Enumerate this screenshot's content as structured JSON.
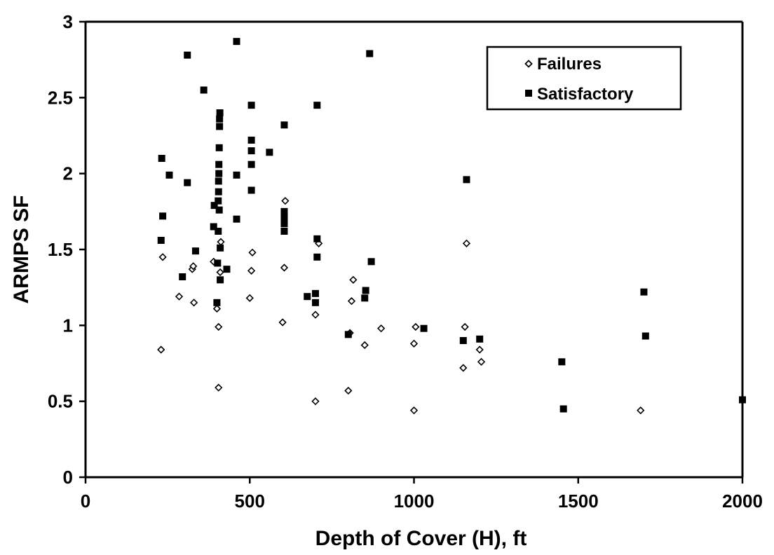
{
  "chart_data": {
    "type": "scatter",
    "title": "",
    "xlabel": "Depth of Cover (H), ft",
    "ylabel": "ARMPS SF",
    "xlim": [
      0,
      2000
    ],
    "ylim": [
      0,
      3
    ],
    "x_ticks": [
      "0",
      "500",
      "1000",
      "1500",
      "2000"
    ],
    "y_ticks": [
      "0",
      "0.5",
      "1",
      "1.5",
      "2",
      "2.5",
      "3"
    ],
    "grid": false,
    "legend_position": "top-right",
    "series": [
      {
        "name": "Failures",
        "marker": "open-diamond",
        "color": "#000000",
        "points": [
          [
            230,
            0.84
          ],
          [
            235,
            1.45
          ],
          [
            285,
            1.19
          ],
          [
            325,
            1.37
          ],
          [
            328,
            1.39
          ],
          [
            330,
            1.15
          ],
          [
            390,
            1.42
          ],
          [
            400,
            1.11
          ],
          [
            405,
            0.99
          ],
          [
            405,
            0.59
          ],
          [
            410,
            1.35
          ],
          [
            412,
            1.55
          ],
          [
            500,
            1.18
          ],
          [
            505,
            1.36
          ],
          [
            508,
            1.48
          ],
          [
            600,
            1.02
          ],
          [
            605,
            1.38
          ],
          [
            608,
            1.82
          ],
          [
            700,
            1.07
          ],
          [
            700,
            0.5
          ],
          [
            710,
            1.54
          ],
          [
            800,
            0.57
          ],
          [
            805,
            0.95
          ],
          [
            810,
            1.16
          ],
          [
            815,
            1.3
          ],
          [
            850,
            0.87
          ],
          [
            900,
            0.98
          ],
          [
            1000,
            0.44
          ],
          [
            1000,
            0.88
          ],
          [
            1005,
            0.99
          ],
          [
            1150,
            0.72
          ],
          [
            1155,
            0.99
          ],
          [
            1160,
            1.54
          ],
          [
            1200,
            0.84
          ],
          [
            1205,
            0.76
          ],
          [
            1690,
            0.44
          ]
        ]
      },
      {
        "name": "Satisfactory",
        "marker": "filled-square",
        "color": "#000000",
        "points": [
          [
            230,
            1.56
          ],
          [
            232,
            2.1
          ],
          [
            235,
            1.72
          ],
          [
            255,
            1.99
          ],
          [
            295,
            1.32
          ],
          [
            310,
            1.94
          ],
          [
            310,
            2.78
          ],
          [
            335,
            1.49
          ],
          [
            360,
            2.55
          ],
          [
            390,
            1.65
          ],
          [
            392,
            1.79
          ],
          [
            400,
            1.15
          ],
          [
            402,
            1.41
          ],
          [
            404,
            1.62
          ],
          [
            404,
            1.82
          ],
          [
            405,
            1.88
          ],
          [
            405,
            1.95
          ],
          [
            406,
            2.0
          ],
          [
            406,
            2.06
          ],
          [
            407,
            1.76
          ],
          [
            407,
            2.17
          ],
          [
            408,
            2.31
          ],
          [
            408,
            2.36
          ],
          [
            409,
            2.4
          ],
          [
            410,
            1.3
          ],
          [
            410,
            1.51
          ],
          [
            430,
            1.37
          ],
          [
            460,
            2.87
          ],
          [
            460,
            1.99
          ],
          [
            460,
            1.7
          ],
          [
            505,
            2.45
          ],
          [
            505,
            2.22
          ],
          [
            505,
            2.15
          ],
          [
            505,
            2.06
          ],
          [
            505,
            1.89
          ],
          [
            560,
            2.14
          ],
          [
            605,
            2.32
          ],
          [
            605,
            1.75
          ],
          [
            605,
            1.71
          ],
          [
            605,
            1.67
          ],
          [
            605,
            1.62
          ],
          [
            675,
            1.19
          ],
          [
            700,
            1.21
          ],
          [
            700,
            1.15
          ],
          [
            705,
            2.45
          ],
          [
            705,
            1.57
          ],
          [
            705,
            1.45
          ],
          [
            800,
            0.94
          ],
          [
            850,
            1.18
          ],
          [
            853,
            1.23
          ],
          [
            865,
            2.79
          ],
          [
            870,
            1.42
          ],
          [
            1030,
            0.98
          ],
          [
            1150,
            0.9
          ],
          [
            1160,
            1.96
          ],
          [
            1200,
            0.91
          ],
          [
            1450,
            0.76
          ],
          [
            1455,
            0.45
          ],
          [
            1700,
            1.22
          ],
          [
            1705,
            0.93
          ],
          [
            2000,
            0.51
          ]
        ]
      }
    ]
  }
}
